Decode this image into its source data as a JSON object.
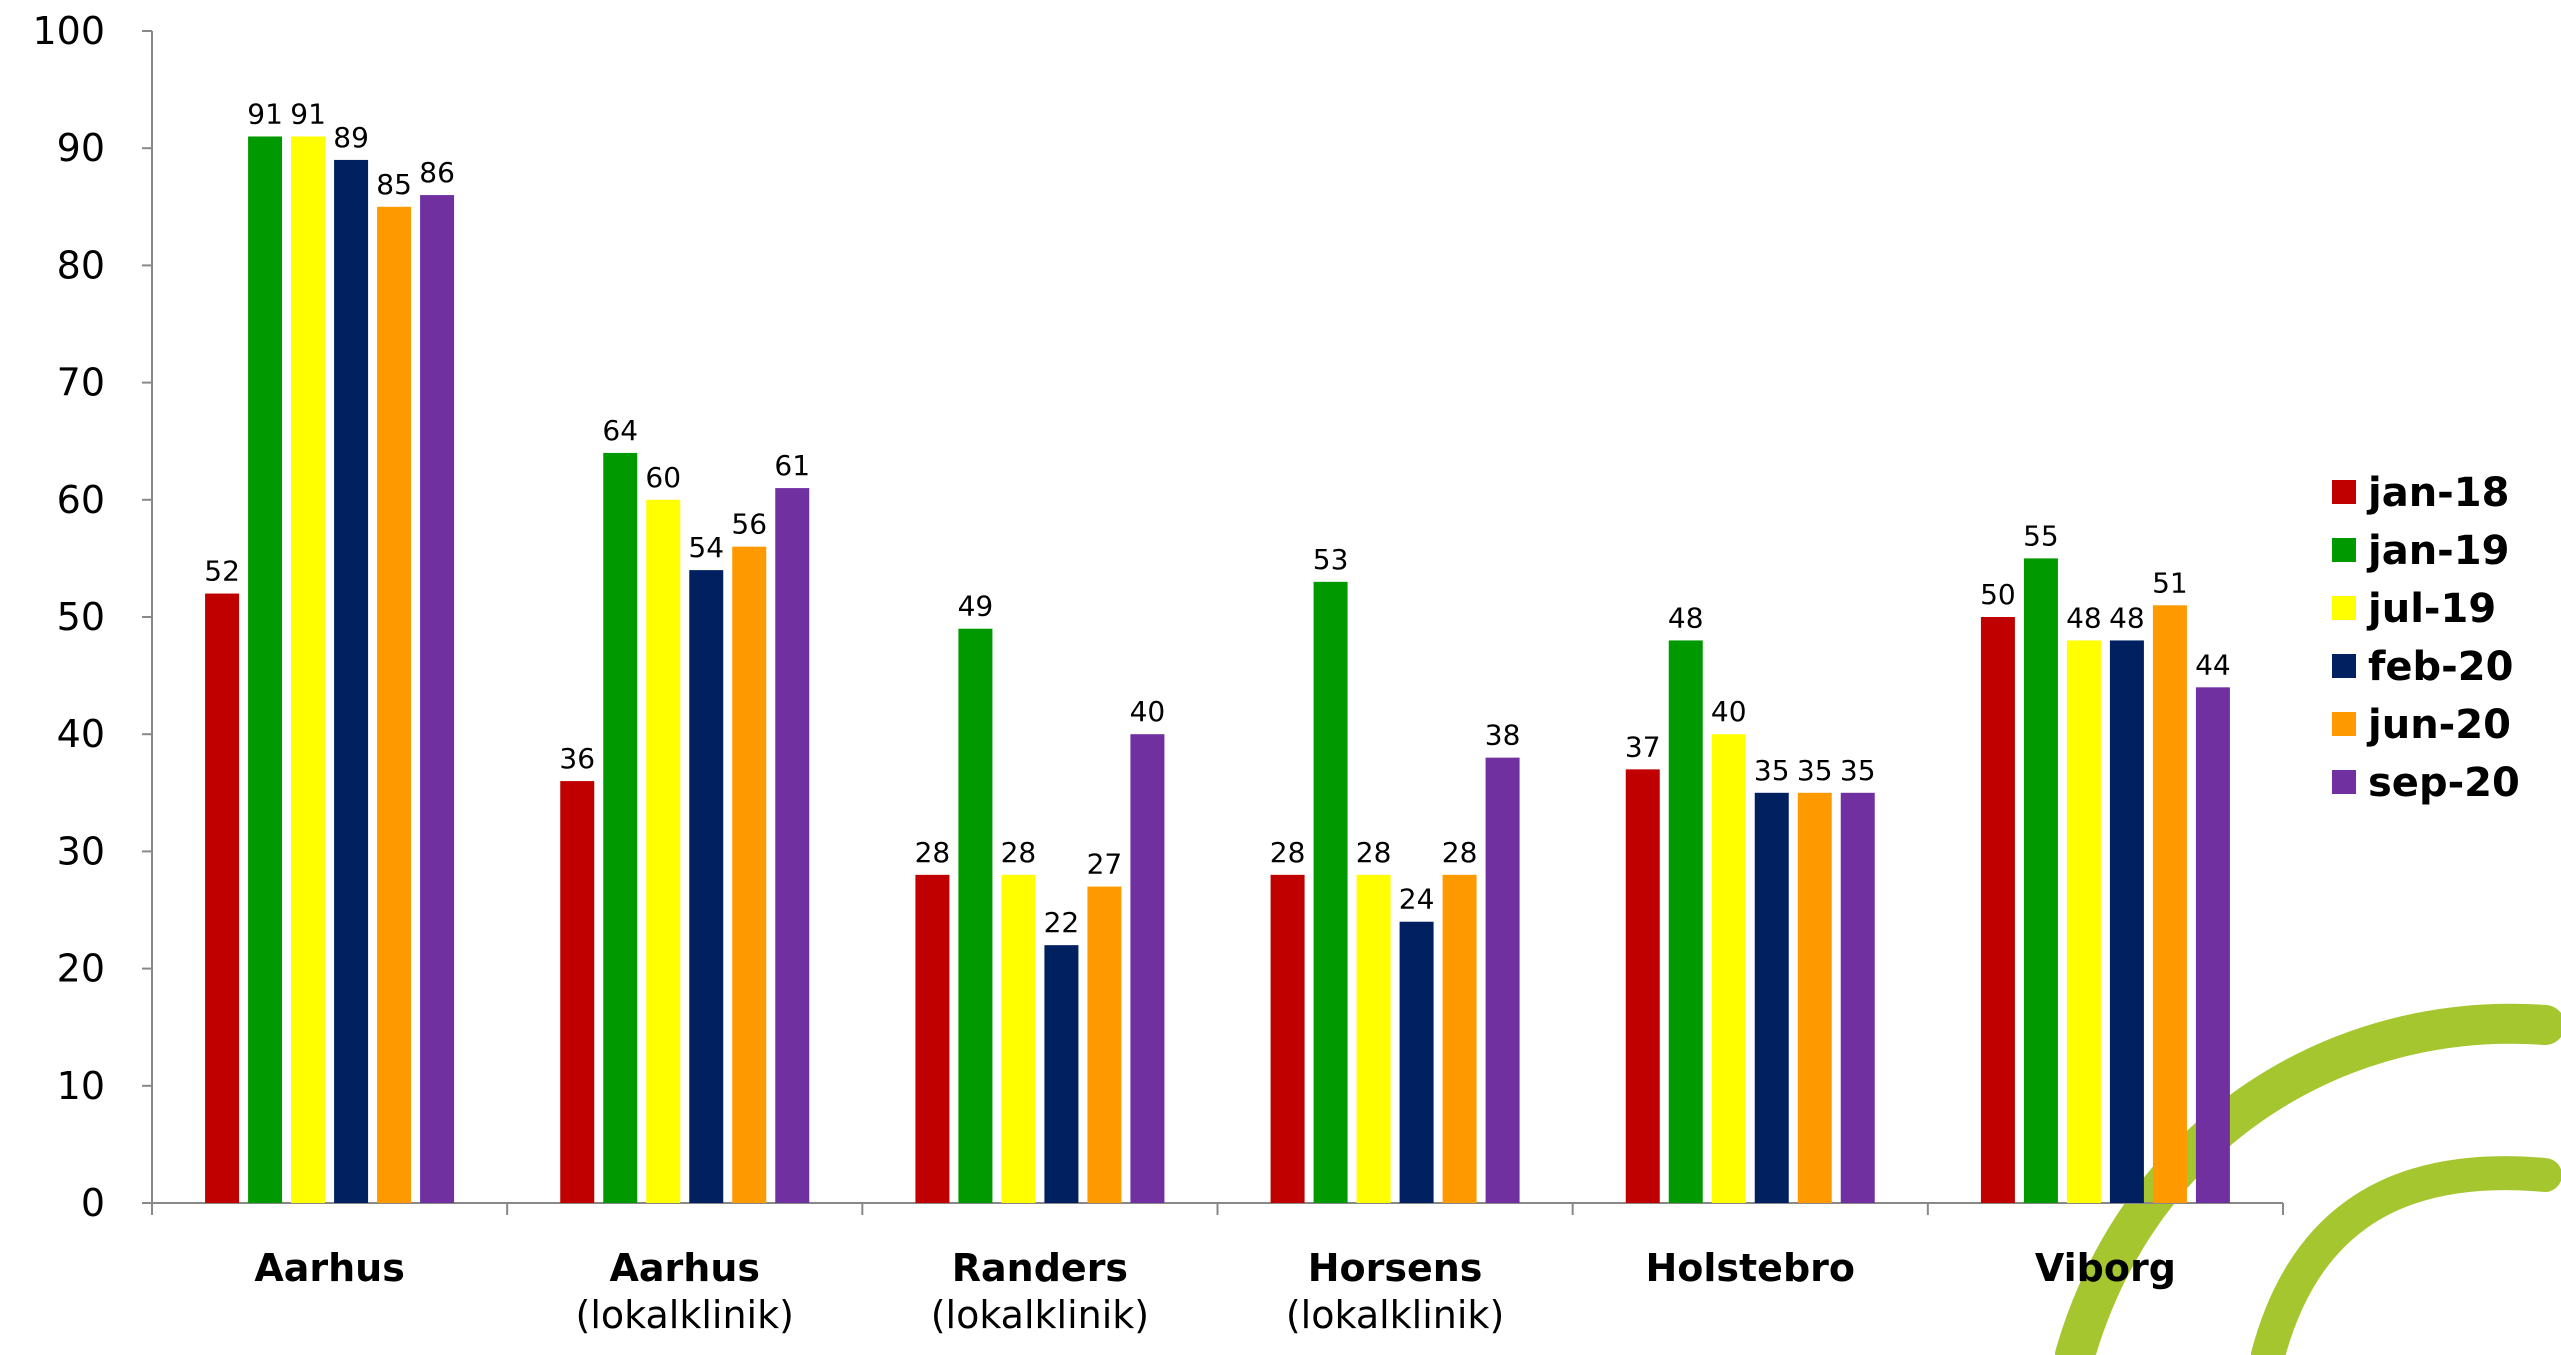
{
  "chart_data": {
    "type": "bar",
    "categories": [
      [
        "Aarhus"
      ],
      [
        "Aarhus",
        "(lokalklinik)"
      ],
      [
        "Randers",
        "(lokalklinik)"
      ],
      [
        "Horsens",
        "(lokalklinik)"
      ],
      [
        "Holstebro"
      ],
      [
        "Viborg"
      ]
    ],
    "series": [
      {
        "name": "jan-18",
        "color": "#C00000",
        "values": [
          52,
          36,
          28,
          28,
          37,
          50
        ]
      },
      {
        "name": "jan-19",
        "color": "#009900",
        "values": [
          91,
          64,
          49,
          53,
          48,
          55
        ]
      },
      {
        "name": "jul-19",
        "color": "#FFFF00",
        "values": [
          91,
          60,
          28,
          28,
          40,
          48
        ]
      },
      {
        "name": "feb-20",
        "color": "#002060",
        "values": [
          89,
          54,
          22,
          24,
          35,
          48
        ]
      },
      {
        "name": "jun-20",
        "color": "#FF9900",
        "values": [
          85,
          56,
          27,
          28,
          35,
          51
        ]
      },
      {
        "name": "sep-20",
        "color": "#7030A0",
        "values": [
          86,
          61,
          40,
          38,
          35,
          44
        ]
      }
    ],
    "ylim": [
      0,
      100
    ],
    "yticks": [
      0,
      10,
      20,
      30,
      40,
      50,
      60,
      70,
      80,
      90,
      100
    ],
    "xlabel": "",
    "ylabel": "",
    "title": "",
    "grid": false,
    "legend": "right",
    "data_labels": true
  },
  "decoration": {
    "swoosh_color": "#A5C62E"
  }
}
